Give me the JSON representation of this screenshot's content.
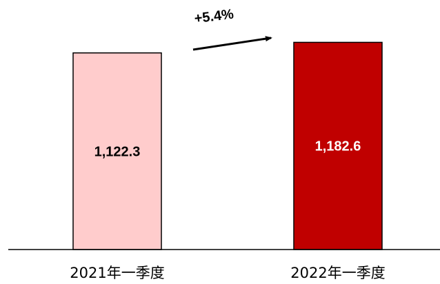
{
  "chart_data": {
    "type": "bar",
    "categories": [
      "2021年一季度",
      "2022年一季度"
    ],
    "values": [
      1122.3,
      1182.6
    ],
    "value_labels": [
      "1,122.3",
      "1,182.6"
    ],
    "ylim": [
      0,
      1200
    ],
    "grid": false,
    "bar_colors": [
      "#ffcccc",
      "#c00000"
    ],
    "bar_edge_color": "#000000",
    "value_label_colors": [
      "#000000",
      "#ffffff"
    ],
    "annotation": {
      "text": "+5.4%",
      "arrow": "up-right"
    }
  }
}
